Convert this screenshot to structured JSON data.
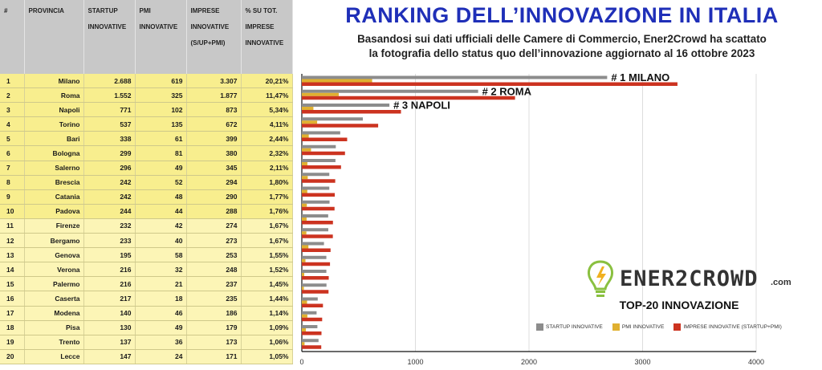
{
  "title": "RANKING DELL’INNOVAZIONE IN ITALIA",
  "subtitle_line1": "Basandosi sui dati ufficiali delle Camere di Commercio, Ener2Crowd ha scattato",
  "subtitle_line2": "la fotografia dello status quo dell’innovazione aggiornato al 16 ottobre 2023",
  "table": {
    "headers": [
      "#",
      "PROVINCIA",
      "STARTUP INNOVATIVE",
      "PMI INNOVATIVE",
      "IMPRESE INNOVATIVE (S/UP+PMI)",
      "% SU TOT. IMPRESE INNOVATIVE"
    ],
    "rows": [
      {
        "rank": "1",
        "provincia": "Milano",
        "startup": "2.688",
        "pmi": "619",
        "imprese": "3.307",
        "pct": "20,21%"
      },
      {
        "rank": "2",
        "provincia": "Roma",
        "startup": "1.552",
        "pmi": "325",
        "imprese": "1.877",
        "pct": "11,47%"
      },
      {
        "rank": "3",
        "provincia": "Napoli",
        "startup": "771",
        "pmi": "102",
        "imprese": "873",
        "pct": "5,34%"
      },
      {
        "rank": "4",
        "provincia": "Torino",
        "startup": "537",
        "pmi": "135",
        "imprese": "672",
        "pct": "4,11%"
      },
      {
        "rank": "5",
        "provincia": "Bari",
        "startup": "338",
        "pmi": "61",
        "imprese": "399",
        "pct": "2,44%"
      },
      {
        "rank": "6",
        "provincia": "Bologna",
        "startup": "299",
        "pmi": "81",
        "imprese": "380",
        "pct": "2,32%"
      },
      {
        "rank": "7",
        "provincia": "Salerno",
        "startup": "296",
        "pmi": "49",
        "imprese": "345",
        "pct": "2,11%"
      },
      {
        "rank": "8",
        "provincia": "Brescia",
        "startup": "242",
        "pmi": "52",
        "imprese": "294",
        "pct": "1,80%"
      },
      {
        "rank": "9",
        "provincia": "Catania",
        "startup": "242",
        "pmi": "48",
        "imprese": "290",
        "pct": "1,77%"
      },
      {
        "rank": "10",
        "provincia": "Padova",
        "startup": "244",
        "pmi": "44",
        "imprese": "288",
        "pct": "1,76%"
      },
      {
        "rank": "11",
        "provincia": "Firenze",
        "startup": "232",
        "pmi": "42",
        "imprese": "274",
        "pct": "1,67%"
      },
      {
        "rank": "12",
        "provincia": "Bergamo",
        "startup": "233",
        "pmi": "40",
        "imprese": "273",
        "pct": "1,67%"
      },
      {
        "rank": "13",
        "provincia": "Genova",
        "startup": "195",
        "pmi": "58",
        "imprese": "253",
        "pct": "1,55%"
      },
      {
        "rank": "14",
        "provincia": "Verona",
        "startup": "216",
        "pmi": "32",
        "imprese": "248",
        "pct": "1,52%"
      },
      {
        "rank": "15",
        "provincia": "Palermo",
        "startup": "216",
        "pmi": "21",
        "imprese": "237",
        "pct": "1,45%"
      },
      {
        "rank": "16",
        "provincia": "Caserta",
        "startup": "217",
        "pmi": "18",
        "imprese": "235",
        "pct": "1,44%"
      },
      {
        "rank": "17",
        "provincia": "Modena",
        "startup": "140",
        "pmi": "46",
        "imprese": "186",
        "pct": "1,14%"
      },
      {
        "rank": "18",
        "provincia": "Pisa",
        "startup": "130",
        "pmi": "49",
        "imprese": "179",
        "pct": "1,09%"
      },
      {
        "rank": "19",
        "provincia": "Trento",
        "startup": "137",
        "pmi": "36",
        "imprese": "173",
        "pct": "1,06%"
      },
      {
        "rank": "20",
        "provincia": "Lecce",
        "startup": "147",
        "pmi": "24",
        "imprese": "171",
        "pct": "1,05%"
      }
    ]
  },
  "brand": {
    "name": "ENER2CROWD",
    "suffix": ".com"
  },
  "colors": {
    "title": "#1f2fb8",
    "startup": "#8c8c8c",
    "pmi": "#e0b030",
    "imprese": "#cc3320",
    "table_row": "#f8ee8e",
    "header": "#c8c8c8"
  },
  "chart_data": {
    "type": "bar",
    "orientation": "horizontal",
    "title": "TOP-20 INNOVAZIONE",
    "categories": [
      "Milano",
      "Roma",
      "Napoli",
      "Torino",
      "Bari",
      "Bologna",
      "Salerno",
      "Brescia",
      "Catania",
      "Padova",
      "Firenze",
      "Bergamo",
      "Genova",
      "Verona",
      "Palermo",
      "Caserta",
      "Modena",
      "Pisa",
      "Trento",
      "Lecce"
    ],
    "series": [
      {
        "name": "STARTUP INNOVATIVE",
        "color": "#8c8c8c",
        "values": [
          2688,
          1552,
          771,
          537,
          338,
          299,
          296,
          242,
          242,
          244,
          232,
          233,
          195,
          216,
          216,
          217,
          140,
          130,
          137,
          147
        ]
      },
      {
        "name": "PMI INNOVATIVE",
        "color": "#e0b030",
        "values": [
          619,
          325,
          102,
          135,
          61,
          81,
          49,
          52,
          48,
          44,
          42,
          40,
          58,
          32,
          21,
          18,
          46,
          49,
          36,
          24
        ]
      },
      {
        "name": "IMPRESE INNOVATIVE (STARTUP+PMI)",
        "color": "#cc3320",
        "values": [
          3307,
          1877,
          873,
          672,
          399,
          380,
          345,
          294,
          290,
          288,
          274,
          273,
          253,
          248,
          237,
          235,
          186,
          179,
          173,
          171
        ]
      }
    ],
    "annotations": [
      "# 1 MILANO",
      "# 2 ROMA",
      "# 3 NAPOLI"
    ],
    "xlim": [
      0,
      4000
    ],
    "xticks": [
      "0",
      "1000",
      "2000",
      "3000",
      "4000"
    ],
    "grid": true,
    "legend": "bottom"
  }
}
